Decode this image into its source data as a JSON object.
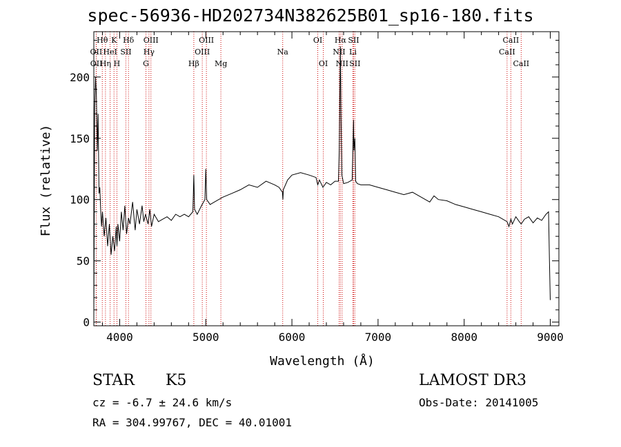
{
  "title": "spec-56936-HD202734N382625B01_sp16-180.fits",
  "footer": {
    "class_label": "STAR",
    "subclass": "K5",
    "survey": "LAMOST DR3",
    "cz": "cz = -6.7 ± 24.6 km/s",
    "obs_date": "Obs-Date: 20141005",
    "coords": "RA = 304.99767, DEC =  40.01001"
  },
  "colors": {
    "line_marker": "#cc0000",
    "spectrum": "#000000"
  },
  "chart_data": {
    "type": "line",
    "title": "spec-56936-HD202734N382625B01_sp16-180.fits",
    "xlabel": "Wavelength (Å)",
    "ylabel": "Flux (relative)",
    "xlim": [
      3700,
      9100
    ],
    "ylim": [
      -3,
      237
    ],
    "xticks": [
      4000,
      5000,
      6000,
      7000,
      8000,
      9000
    ],
    "yticks": [
      0,
      50,
      100,
      150,
      200
    ],
    "series": [
      {
        "name": "flux",
        "x": [
          3700,
          3710,
          3720,
          3730,
          3740,
          3750,
          3760,
          3770,
          3780,
          3790,
          3800,
          3820,
          3840,
          3860,
          3880,
          3900,
          3920,
          3940,
          3960,
          3968,
          3980,
          4000,
          4020,
          4040,
          4060,
          4080,
          4102,
          4120,
          4150,
          4180,
          4200,
          4230,
          4260,
          4280,
          4300,
          4330,
          4350,
          4370,
          4400,
          4450,
          4500,
          4550,
          4600,
          4650,
          4700,
          4750,
          4800,
          4850,
          4861,
          4870,
          4900,
          4950,
          4990,
          5000,
          5010,
          5050,
          5100,
          5150,
          5200,
          5300,
          5400,
          5500,
          5600,
          5700,
          5800,
          5850,
          5890,
          5895,
          5900,
          5950,
          6000,
          6100,
          6200,
          6280,
          6300,
          6320,
          6360,
          6400,
          6450,
          6500,
          6540,
          6550,
          6563,
          6570,
          6580,
          6600,
          6650,
          6700,
          6716,
          6720,
          6731,
          6740,
          6760,
          6800,
          6900,
          7000,
          7100,
          7200,
          7300,
          7400,
          7500,
          7600,
          7650,
          7700,
          7800,
          7900,
          8000,
          8100,
          8200,
          8300,
          8400,
          8498,
          8520,
          8542,
          8560,
          8600,
          8640,
          8662,
          8700,
          8750,
          8800,
          8850,
          8900,
          8950,
          8980,
          8990,
          9000
        ],
        "values": [
          5,
          175,
          200,
          185,
          140,
          170,
          105,
          110,
          90,
          78,
          90,
          70,
          85,
          62,
          80,
          55,
          70,
          58,
          78,
          62,
          80,
          66,
          90,
          75,
          95,
          72,
          85,
          80,
          98,
          75,
          92,
          80,
          95,
          82,
          88,
          80,
          92,
          78,
          88,
          82,
          84,
          86,
          83,
          88,
          86,
          88,
          86,
          90,
          120,
          92,
          88,
          95,
          100,
          125,
          100,
          96,
          98,
          100,
          102,
          105,
          108,
          112,
          110,
          115,
          112,
          110,
          106,
          100,
          108,
          116,
          120,
          122,
          120,
          118,
          112,
          116,
          110,
          114,
          112,
          115,
          115,
          140,
          225,
          170,
          120,
          113,
          114,
          116,
          165,
          140,
          150,
          115,
          113,
          112,
          112,
          110,
          108,
          106,
          104,
          106,
          102,
          98,
          103,
          100,
          99,
          96,
          94,
          92,
          90,
          88,
          86,
          82,
          78,
          84,
          80,
          86,
          82,
          80,
          84,
          86,
          81,
          85,
          83,
          88,
          90,
          50,
          18
        ]
      }
    ],
    "annotations": [
      {
        "label": "Hθ",
        "wavelength": 3798,
        "row": 0
      },
      {
        "label": "OII",
        "wavelength": 3727,
        "row": 1
      },
      {
        "label": "OII",
        "wavelength": 3729,
        "row": 2
      },
      {
        "label": "HeI",
        "wavelength": 3889,
        "row": 1
      },
      {
        "label": "Hη",
        "wavelength": 3835,
        "row": 2
      },
      {
        "label": "K",
        "wavelength": 3934,
        "row": 0
      },
      {
        "label": "SII",
        "wavelength": 4072,
        "row": 1
      },
      {
        "label": "H",
        "wavelength": 3968,
        "row": 2
      },
      {
        "label": "Hδ",
        "wavelength": 4102,
        "row": 0
      },
      {
        "label": "OIII",
        "wavelength": 4363,
        "row": 0
      },
      {
        "label": "Hγ",
        "wavelength": 4340,
        "row": 1
      },
      {
        "label": "G",
        "wavelength": 4305,
        "row": 2
      },
      {
        "label": "Hβ",
        "wavelength": 4861,
        "row": 2
      },
      {
        "label": "OIII",
        "wavelength": 5007,
        "row": 0
      },
      {
        "label": "OIII",
        "wavelength": 4959,
        "row": 1
      },
      {
        "label": "Mg",
        "wavelength": 5175,
        "row": 2
      },
      {
        "label": "Na",
        "wavelength": 5893,
        "row": 1
      },
      {
        "label": "OI",
        "wavelength": 6300,
        "row": 0
      },
      {
        "label": "OI",
        "wavelength": 6364,
        "row": 2
      },
      {
        "label": "Hα",
        "wavelength": 6563,
        "row": 0
      },
      {
        "label": "NII",
        "wavelength": 6548,
        "row": 1
      },
      {
        "label": "NII",
        "wavelength": 6583,
        "row": 2
      },
      {
        "label": "SII",
        "wavelength": 6716,
        "row": 0
      },
      {
        "label": "Li",
        "wavelength": 6708,
        "row": 1
      },
      {
        "label": "SII",
        "wavelength": 6731,
        "row": 2
      },
      {
        "label": "CaII",
        "wavelength": 8542,
        "row": 0
      },
      {
        "label": "CaII",
        "wavelength": 8498,
        "row": 1
      },
      {
        "label": "CaII",
        "wavelength": 8662,
        "row": 2
      }
    ]
  }
}
